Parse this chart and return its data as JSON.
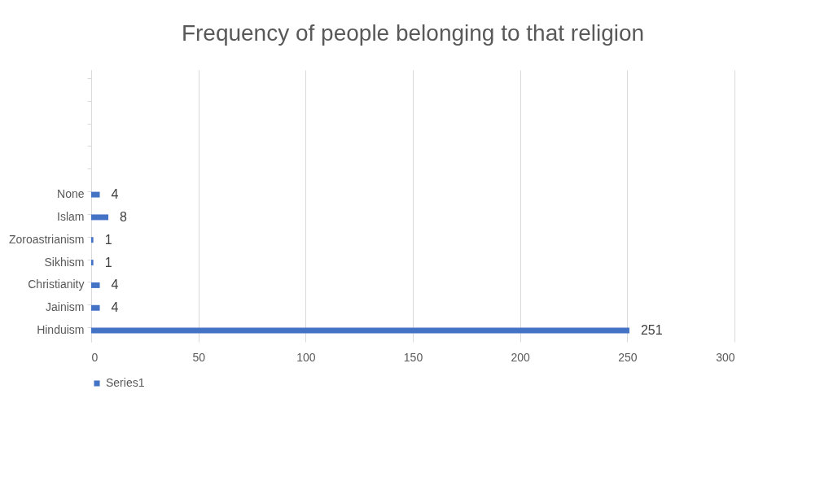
{
  "chart_data": {
    "type": "bar",
    "orientation": "horizontal",
    "title": "Frequency of people belonging to that religion",
    "categories": [
      null,
      null,
      null,
      null,
      null,
      "None",
      "Islam",
      "Zoroastrianism",
      "Sikhism",
      "Christianity",
      "Jainism",
      "Hinduism"
    ],
    "series": [
      {
        "name": "Series1",
        "color": "#4472c4",
        "values": [
          null,
          null,
          null,
          null,
          null,
          4,
          8,
          1,
          1,
          4,
          4,
          251
        ]
      }
    ],
    "xlim": [
      0,
      300
    ],
    "xticks": [
      0,
      50,
      100,
      150,
      200,
      250,
      300
    ],
    "grid": "x",
    "legend": "bottom",
    "data_labels": true
  }
}
